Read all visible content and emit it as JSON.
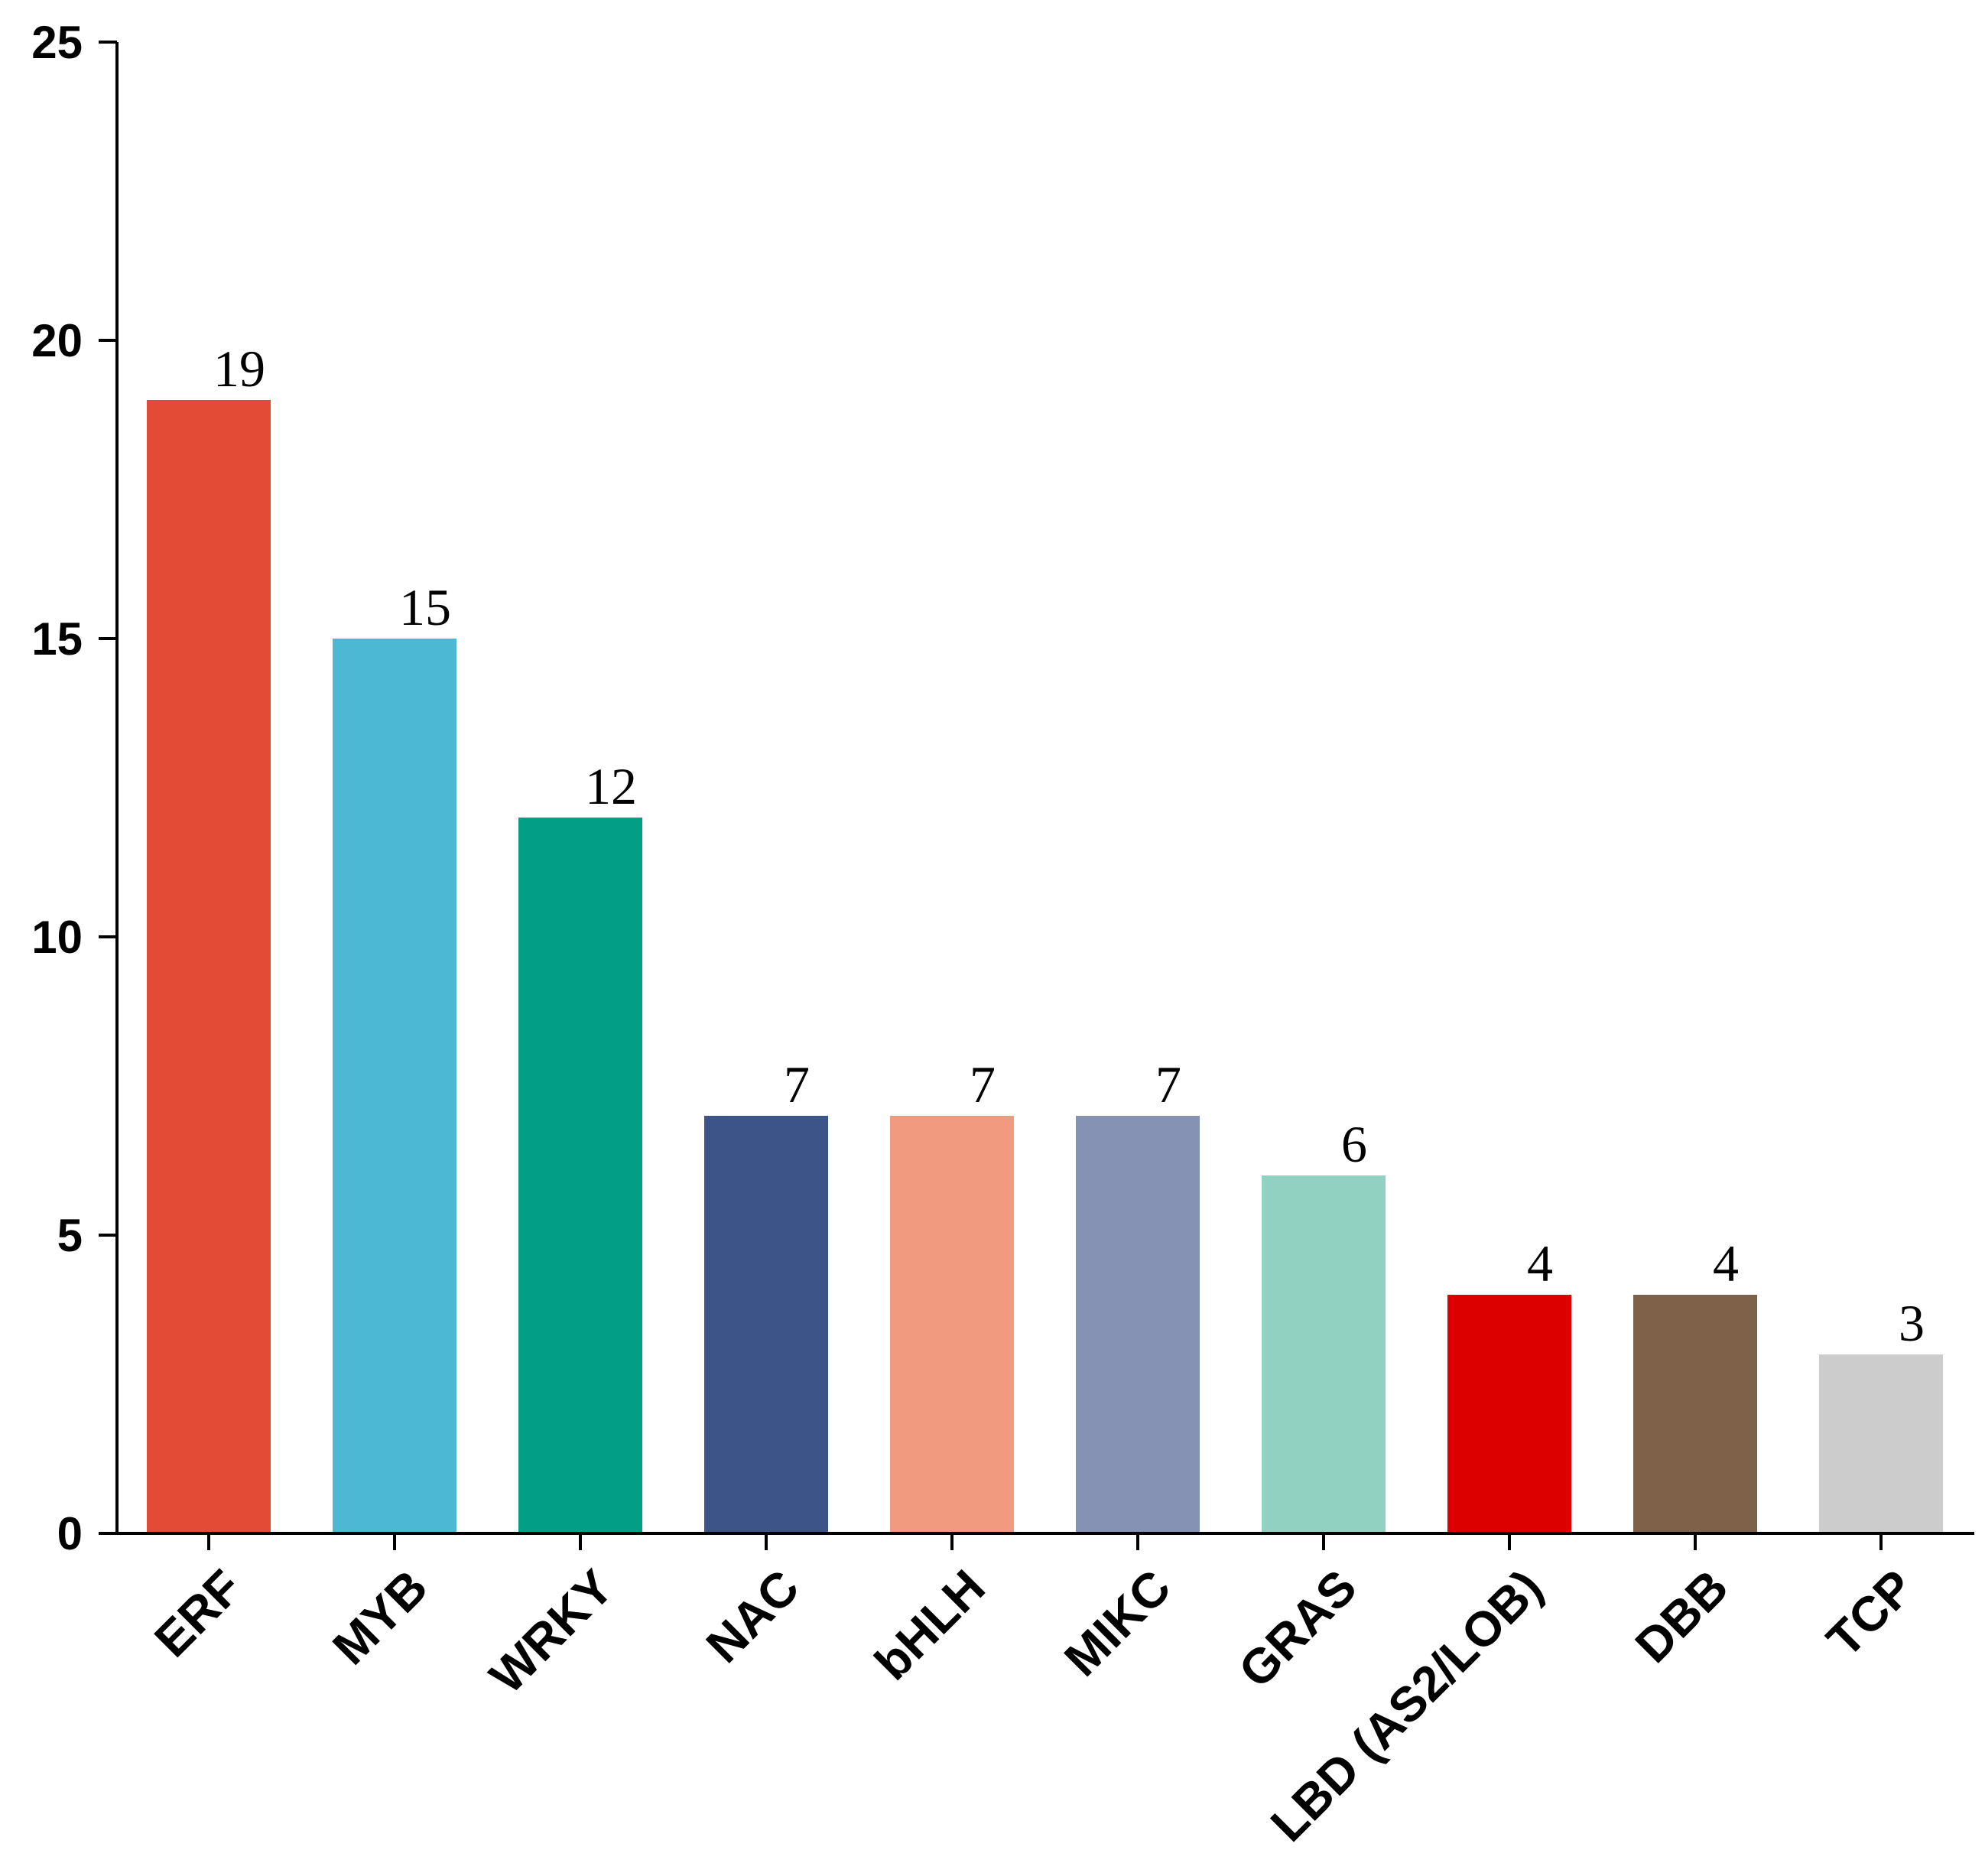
{
  "chart_data": {
    "type": "bar",
    "title": "",
    "xlabel": "",
    "ylabel": "",
    "ylim": [
      0,
      25
    ],
    "yticks": [
      0,
      5,
      10,
      15,
      20,
      25
    ],
    "categories": [
      "ERF",
      "MYB",
      "WRKY",
      "NAC",
      "bHLH",
      "MIKC",
      "GRAS",
      "LBD (AS2/LOB)",
      "DBB",
      "TCP"
    ],
    "values": [
      19,
      15,
      12,
      7,
      7,
      7,
      6,
      4,
      4,
      3
    ],
    "colors": [
      "#E34B36",
      "#4DB8D4",
      "#039E86",
      "#3C5488",
      "#F19A80",
      "#8592B3",
      "#91D1C1",
      "#DC0000",
      "#7E6148",
      "#CCCCCC"
    ],
    "grid": false,
    "legend": "none",
    "data_labels": true
  }
}
